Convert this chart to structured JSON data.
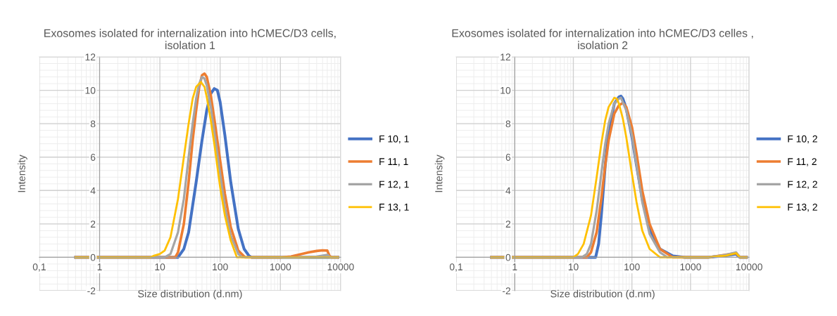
{
  "chart_data": [
    {
      "type": "line",
      "title": "Exosomes isolated for internalization into hCMEC/D3 cells,\nisolation 1",
      "xlabel": "Size distribution (d.nm)",
      "ylabel": "Intensity",
      "log": "x",
      "xlim": [
        0.1,
        10000
      ],
      "ylim": [
        -2,
        12
      ],
      "xticks": [
        {
          "value": 0.1,
          "label": "0,1"
        },
        1,
        10,
        100,
        1000,
        10000
      ],
      "yticks": [
        -2,
        0,
        2,
        4,
        6,
        8,
        10,
        12
      ],
      "grid": true,
      "legend": "right",
      "marker": "none",
      "line_style": "solid",
      "series": [
        {
          "name": "F 10, 1",
          "color": "#4472c4",
          "x": [
            0.4,
            10,
            20,
            25,
            30,
            40,
            50,
            60,
            70,
            80,
            90,
            100,
            120,
            150,
            200,
            250,
            300,
            330,
            1000,
            9000
          ],
          "values": [
            0,
            0,
            0,
            0.5,
            1.5,
            4.5,
            7,
            8.8,
            9.8,
            10.1,
            10,
            9.3,
            7.3,
            4.5,
            1.7,
            0.5,
            0.1,
            0,
            0,
            0
          ]
        },
        {
          "name": "F 11, 1",
          "color": "#ed7d31",
          "x": [
            0.4,
            15,
            18,
            20,
            25,
            30,
            35,
            40,
            45,
            50,
            55,
            60,
            70,
            80,
            100,
            120,
            150,
            200,
            260,
            1000,
            1500,
            2000,
            3000,
            4000,
            5000,
            6000,
            6500,
            7000,
            9000
          ],
          "values": [
            0,
            0,
            0,
            0.3,
            2,
            4.5,
            7,
            8.8,
            10.2,
            10.9,
            11,
            10.8,
            9.7,
            8.3,
            5.8,
            3.8,
            1.8,
            0.4,
            0,
            0,
            0.05,
            0.15,
            0.3,
            0.38,
            0.42,
            0.4,
            0.1,
            0,
            0
          ]
        },
        {
          "name": "F 12, 1",
          "color": "#a5a5a5",
          "x": [
            0.4,
            12,
            15,
            20,
            25,
            30,
            35,
            40,
            45,
            50,
            55,
            60,
            70,
            80,
            100,
            120,
            150,
            200,
            230,
            2000,
            4000,
            6000,
            6800,
            9000
          ],
          "values": [
            0,
            0,
            0.2,
            1.5,
            3.5,
            6,
            8,
            9.5,
            10.4,
            10.8,
            10.7,
            10.3,
            9,
            7.5,
            5,
            3,
            1.3,
            0.2,
            0,
            0,
            0.05,
            0.15,
            0,
            0
          ]
        },
        {
          "name": "F 13, 1",
          "color": "#ffc000",
          "x": [
            0.4,
            7,
            8,
            10,
            12,
            15,
            20,
            25,
            30,
            35,
            40,
            48,
            55,
            60,
            70,
            80,
            100,
            120,
            150,
            190,
            9000
          ],
          "values": [
            0,
            0,
            0.1,
            0.2,
            0.4,
            1.2,
            3.5,
            6,
            8,
            9.5,
            10.2,
            10.5,
            10.2,
            9.6,
            8.2,
            6.8,
            4.2,
            2.5,
            1,
            0,
            0
          ]
        }
      ]
    },
    {
      "type": "line",
      "title": "Exosomes isolated for internalization into hCMEC/D3 celles ,\nisolation 2",
      "xlabel": "Size distribution (d.nm)",
      "ylabel": "Intensity",
      "log": "x",
      "xlim": [
        0.1,
        10000
      ],
      "ylim": [
        -2,
        12
      ],
      "xticks": [
        {
          "value": 0.1,
          "label": "0,1"
        },
        1,
        10,
        100,
        1000,
        10000
      ],
      "yticks": [
        -2,
        0,
        2,
        4,
        6,
        8,
        10,
        12
      ],
      "grid": true,
      "legend": "right",
      "marker": "none",
      "line_style": "solid",
      "series": [
        {
          "name": "F 10, 2",
          "color": "#4472c4",
          "x": [
            0.4,
            20,
            24,
            27,
            30,
            35,
            40,
            50,
            60,
            65,
            70,
            80,
            100,
            120,
            150,
            200,
            300,
            500,
            800,
            2000,
            4000,
            6000,
            6600,
            7000,
            9000
          ],
          "values": [
            0,
            0,
            0,
            0.8,
            2.5,
            5.5,
            7.5,
            9.2,
            9.6,
            9.65,
            9.5,
            8.9,
            7.2,
            5.5,
            3.5,
            1.7,
            0.5,
            0.08,
            0,
            0,
            0.1,
            0.2,
            0.05,
            0,
            0
          ]
        },
        {
          "name": "F 11, 2",
          "color": "#ed7d31",
          "x": [
            0.4,
            17,
            20,
            25,
            30,
            35,
            40,
            50,
            60,
            70,
            80,
            100,
            120,
            150,
            200,
            300,
            500,
            2000,
            4000,
            6000,
            7000,
            9000
          ],
          "values": [
            0,
            0,
            0.3,
            1.5,
            3.5,
            5.5,
            7,
            8.6,
            9.1,
            9.25,
            9,
            7.8,
            6.2,
            4,
            2,
            0.5,
            0,
            0,
            0.15,
            0.25,
            0,
            0
          ]
        },
        {
          "name": "F 12, 2",
          "color": "#a5a5a5",
          "x": [
            0.4,
            14,
            17,
            20,
            25,
            30,
            35,
            40,
            50,
            60,
            65,
            80,
            100,
            120,
            150,
            200,
            300,
            400,
            2000,
            4000,
            6000,
            7000,
            9000
          ],
          "values": [
            0,
            0,
            0.2,
            0.8,
            2.8,
            5,
            6.8,
            8,
            9.2,
            9.5,
            9.55,
            8.8,
            7.3,
            5.5,
            3.3,
            1.4,
            0.3,
            0,
            0,
            0.15,
            0.3,
            0,
            0
          ]
        },
        {
          "name": "F 13, 2",
          "color": "#ffc000",
          "x": [
            0.4,
            10,
            12,
            15,
            20,
            25,
            30,
            35,
            40,
            50,
            55,
            60,
            70,
            80,
            100,
            120,
            150,
            200,
            300,
            2000,
            4000,
            6000,
            7000,
            9000
          ],
          "values": [
            0,
            0,
            0.2,
            0.8,
            2.5,
            4.8,
            6.8,
            8.2,
            9,
            9.55,
            9.5,
            9.2,
            8.3,
            7.2,
            5,
            3.3,
            1.6,
            0.5,
            0,
            0,
            0.1,
            0.25,
            0,
            0
          ]
        }
      ]
    }
  ]
}
